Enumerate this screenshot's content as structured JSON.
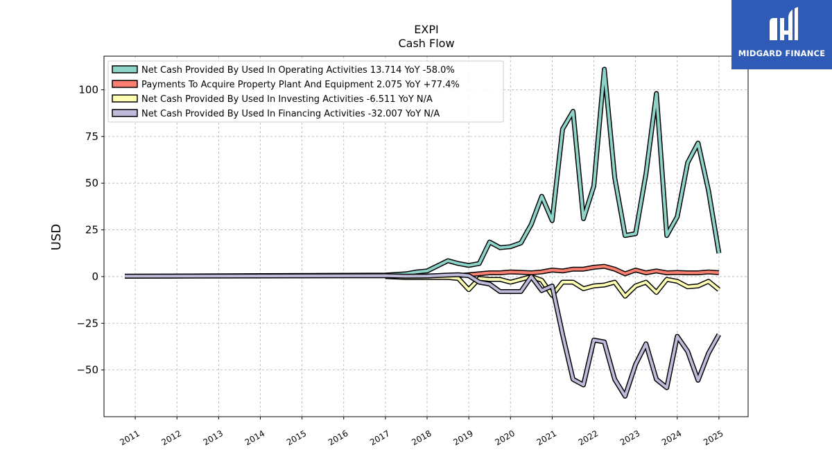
{
  "branding": {
    "logo_text": "MIDGARD FINANCE",
    "logo_bg": "#2f5bb7"
  },
  "chart_data": {
    "type": "line",
    "title": "EXPI",
    "subtitle": "Cash Flow",
    "ylabel": "USD",
    "xlabel": "",
    "ylim": [
      -75,
      118
    ],
    "xlim": [
      2010.25,
      2025.7
    ],
    "yticks": [
      -50,
      -25,
      0,
      25,
      50,
      75,
      100
    ],
    "xticks": [
      2011,
      2012,
      2013,
      2014,
      2015,
      2016,
      2017,
      2018,
      2019,
      2020,
      2021,
      2022,
      2023,
      2024,
      2025
    ],
    "grid": true,
    "legend_position": "top-left",
    "series": [
      {
        "name": "Net Cash Provided By Used In Operating Activities",
        "legend_label": "Net Cash Provided By Used In Operating Activities  13.714 YoY -58.0%",
        "color": "#8dd3c7",
        "points": [
          [
            2010.75,
            0.2
          ],
          [
            2017.0,
            0.8
          ],
          [
            2017.5,
            1.5
          ],
          [
            2017.75,
            2.5
          ],
          [
            2018.0,
            3.0
          ],
          [
            2018.5,
            8.5
          ],
          [
            2018.75,
            7.0
          ],
          [
            2019.0,
            6.0
          ],
          [
            2019.25,
            7.0
          ],
          [
            2019.5,
            18.5
          ],
          [
            2019.75,
            15.5
          ],
          [
            2020.0,
            16.0
          ],
          [
            2020.25,
            18.0
          ],
          [
            2020.5,
            28.0
          ],
          [
            2020.75,
            43.0
          ],
          [
            2021.0,
            30.0
          ],
          [
            2021.25,
            79.0
          ],
          [
            2021.5,
            88.5
          ],
          [
            2021.75,
            31.0
          ],
          [
            2022.0,
            48.5
          ],
          [
            2022.25,
            111.0
          ],
          [
            2022.5,
            53.0
          ],
          [
            2022.75,
            22.0
          ],
          [
            2023.0,
            23.0
          ],
          [
            2023.25,
            55.0
          ],
          [
            2023.5,
            98.0
          ],
          [
            2023.75,
            22.0
          ],
          [
            2024.0,
            32.0
          ],
          [
            2024.25,
            61.0
          ],
          [
            2024.5,
            71.5
          ],
          [
            2024.75,
            46.0
          ],
          [
            2025.0,
            12.5
          ]
        ]
      },
      {
        "name": "Payments To Acquire Property Plant And Equipment",
        "legend_label": "Payments To Acquire Property Plant And Equipment  2.075 YoY +77.4%",
        "color": "#fb8072",
        "points": [
          [
            2017.0,
            0.0
          ],
          [
            2017.5,
            -0.3
          ],
          [
            2018.0,
            -0.3
          ],
          [
            2018.5,
            -0.2
          ],
          [
            2018.75,
            0.5
          ],
          [
            2019.0,
            1.0
          ],
          [
            2019.25,
            1.5
          ],
          [
            2019.5,
            2.0
          ],
          [
            2019.75,
            2.0
          ],
          [
            2020.0,
            2.5
          ],
          [
            2020.25,
            2.3
          ],
          [
            2020.5,
            2.0
          ],
          [
            2020.75,
            2.5
          ],
          [
            2021.0,
            3.5
          ],
          [
            2021.25,
            3.0
          ],
          [
            2021.5,
            4.0
          ],
          [
            2021.75,
            4.0
          ],
          [
            2022.0,
            5.0
          ],
          [
            2022.25,
            5.5
          ],
          [
            2022.5,
            4.0
          ],
          [
            2022.75,
            1.5
          ],
          [
            2023.0,
            3.5
          ],
          [
            2023.25,
            2.0
          ],
          [
            2023.5,
            3.0
          ],
          [
            2023.75,
            2.0
          ],
          [
            2024.0,
            2.2
          ],
          [
            2024.25,
            2.0
          ],
          [
            2024.5,
            2.0
          ],
          [
            2024.75,
            2.5
          ],
          [
            2025.0,
            2.1
          ]
        ]
      },
      {
        "name": "Net Cash Provided By Used In Investing Activities",
        "legend_label": "Net Cash Provided By Used In Investing Activities  -6.511 YoY N/A",
        "color": "#ffffb3",
        "points": [
          [
            2017.0,
            0.0
          ],
          [
            2017.5,
            -0.5
          ],
          [
            2018.0,
            -0.5
          ],
          [
            2018.5,
            -0.5
          ],
          [
            2018.75,
            -1.0
          ],
          [
            2019.0,
            -7.0
          ],
          [
            2019.25,
            -1.0
          ],
          [
            2019.5,
            -1.5
          ],
          [
            2019.75,
            -1.5
          ],
          [
            2020.0,
            -3.0
          ],
          [
            2020.25,
            -1.5
          ],
          [
            2020.5,
            0.0
          ],
          [
            2020.75,
            -2.0
          ],
          [
            2021.0,
            -10.0
          ],
          [
            2021.25,
            -3.0
          ],
          [
            2021.5,
            -3.0
          ],
          [
            2021.75,
            -6.5
          ],
          [
            2022.0,
            -5.0
          ],
          [
            2022.25,
            -4.5
          ],
          [
            2022.5,
            -3.0
          ],
          [
            2022.75,
            -10.5
          ],
          [
            2023.0,
            -5.0
          ],
          [
            2023.25,
            -3.0
          ],
          [
            2023.5,
            -8.5
          ],
          [
            2023.75,
            -1.5
          ],
          [
            2024.0,
            -2.5
          ],
          [
            2024.25,
            -5.5
          ],
          [
            2024.5,
            -5.0
          ],
          [
            2024.75,
            -2.5
          ],
          [
            2025.0,
            -7.0
          ]
        ]
      },
      {
        "name": "Net Cash Provided By Used In Financing Activities",
        "legend_label": "Net Cash Provided By Used In Financing Activities  -32.007 YoY N/A",
        "color": "#bebada",
        "points": [
          [
            2010.75,
            0.2
          ],
          [
            2017.0,
            0.5
          ],
          [
            2017.5,
            0.2
          ],
          [
            2018.0,
            0.3
          ],
          [
            2018.5,
            0.8
          ],
          [
            2018.75,
            1.0
          ],
          [
            2019.0,
            0.5
          ],
          [
            2019.25,
            -3.0
          ],
          [
            2019.5,
            -4.0
          ],
          [
            2019.75,
            -8.0
          ],
          [
            2020.0,
            -8.0
          ],
          [
            2020.25,
            -8.0
          ],
          [
            2020.5,
            0.0
          ],
          [
            2020.75,
            -7.5
          ],
          [
            2021.0,
            -5.0
          ],
          [
            2021.25,
            -31.0
          ],
          [
            2021.5,
            -55.0
          ],
          [
            2021.75,
            -58.0
          ],
          [
            2022.0,
            -34.0
          ],
          [
            2022.25,
            -35.0
          ],
          [
            2022.5,
            -55.0
          ],
          [
            2022.75,
            -64.0
          ],
          [
            2023.0,
            -47.0
          ],
          [
            2023.25,
            -36.0
          ],
          [
            2023.5,
            -55.0
          ],
          [
            2023.75,
            -59.5
          ],
          [
            2024.0,
            -32.0
          ],
          [
            2024.25,
            -40.0
          ],
          [
            2024.5,
            -55.5
          ],
          [
            2024.75,
            -41.0
          ],
          [
            2025.0,
            -31.0
          ]
        ]
      }
    ]
  }
}
